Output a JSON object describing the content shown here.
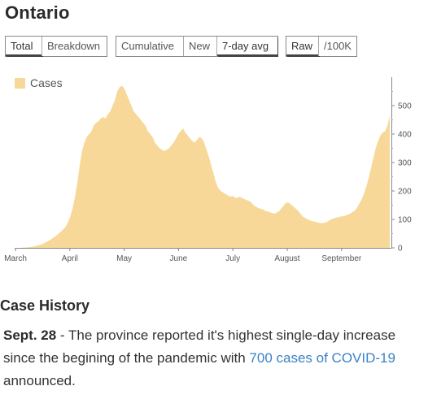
{
  "page": {
    "title": "Ontario"
  },
  "controls": {
    "groups": [
      {
        "buttons": [
          {
            "label": "Total",
            "active": true
          },
          {
            "label": "Breakdown",
            "active": false
          }
        ]
      },
      {
        "buttons": [
          {
            "label": "Cumulative",
            "active": false
          },
          {
            "label": "New",
            "active": false
          },
          {
            "label": "7-day avg",
            "active": true
          }
        ]
      },
      {
        "buttons": [
          {
            "label": "Raw",
            "active": true
          },
          {
            "label": "/100K",
            "active": false
          }
        ]
      }
    ]
  },
  "chart_data": {
    "type": "area",
    "series": [
      {
        "name": "Cases",
        "color": "#f8d898",
        "values": [
          0,
          0,
          0,
          1,
          1,
          2,
          3,
          4,
          6,
          8,
          10,
          13,
          17,
          21,
          26,
          31,
          37,
          43,
          50,
          57,
          65,
          74,
          90,
          110,
          140,
          180,
          230,
          290,
          340,
          370,
          390,
          400,
          410,
          430,
          440,
          445,
          455,
          460,
          455,
          470,
          480,
          500,
          520,
          550,
          565,
          570,
          560,
          540,
          520,
          500,
          480,
          470,
          460,
          450,
          440,
          430,
          410,
          400,
          390,
          370,
          360,
          350,
          345,
          340,
          345,
          350,
          360,
          370,
          385,
          400,
          410,
          420,
          405,
          395,
          385,
          375,
          370,
          380,
          390,
          385,
          370,
          345,
          320,
          290,
          260,
          230,
          210,
          200,
          195,
          190,
          185,
          180,
          182,
          178,
          175,
          180,
          176,
          172,
          168,
          165,
          160,
          150,
          145,
          140,
          138,
          135,
          130,
          128,
          125,
          122,
          120,
          125,
          130,
          140,
          150,
          160,
          158,
          152,
          145,
          138,
          130,
          120,
          110,
          105,
          100,
          97,
          94,
          92,
          90,
          88,
          87,
          88,
          90,
          95,
          100,
          103,
          106,
          108,
          110,
          111,
          113,
          116,
          120,
          125,
          130,
          140,
          155,
          170,
          190,
          215,
          245,
          280,
          315,
          350,
          375,
          395,
          405,
          410,
          430,
          465
        ]
      }
    ],
    "x_tick_labels": [
      "March",
      "April",
      "May",
      "June",
      "July",
      "August",
      "September"
    ],
    "y_ticks": [
      0,
      100,
      200,
      300,
      400,
      500
    ],
    "ylim": [
      0,
      600
    ],
    "legend": {
      "position": "top-left",
      "label": "Cases"
    },
    "grid": false
  },
  "history": {
    "heading": "Case History",
    "date": "Sept. 28",
    "text_before": " - The province reported it's highest single-day increase since the begining of the pandemic with ",
    "link_text": "700 cases of COVID-19",
    "text_after": " announced."
  }
}
